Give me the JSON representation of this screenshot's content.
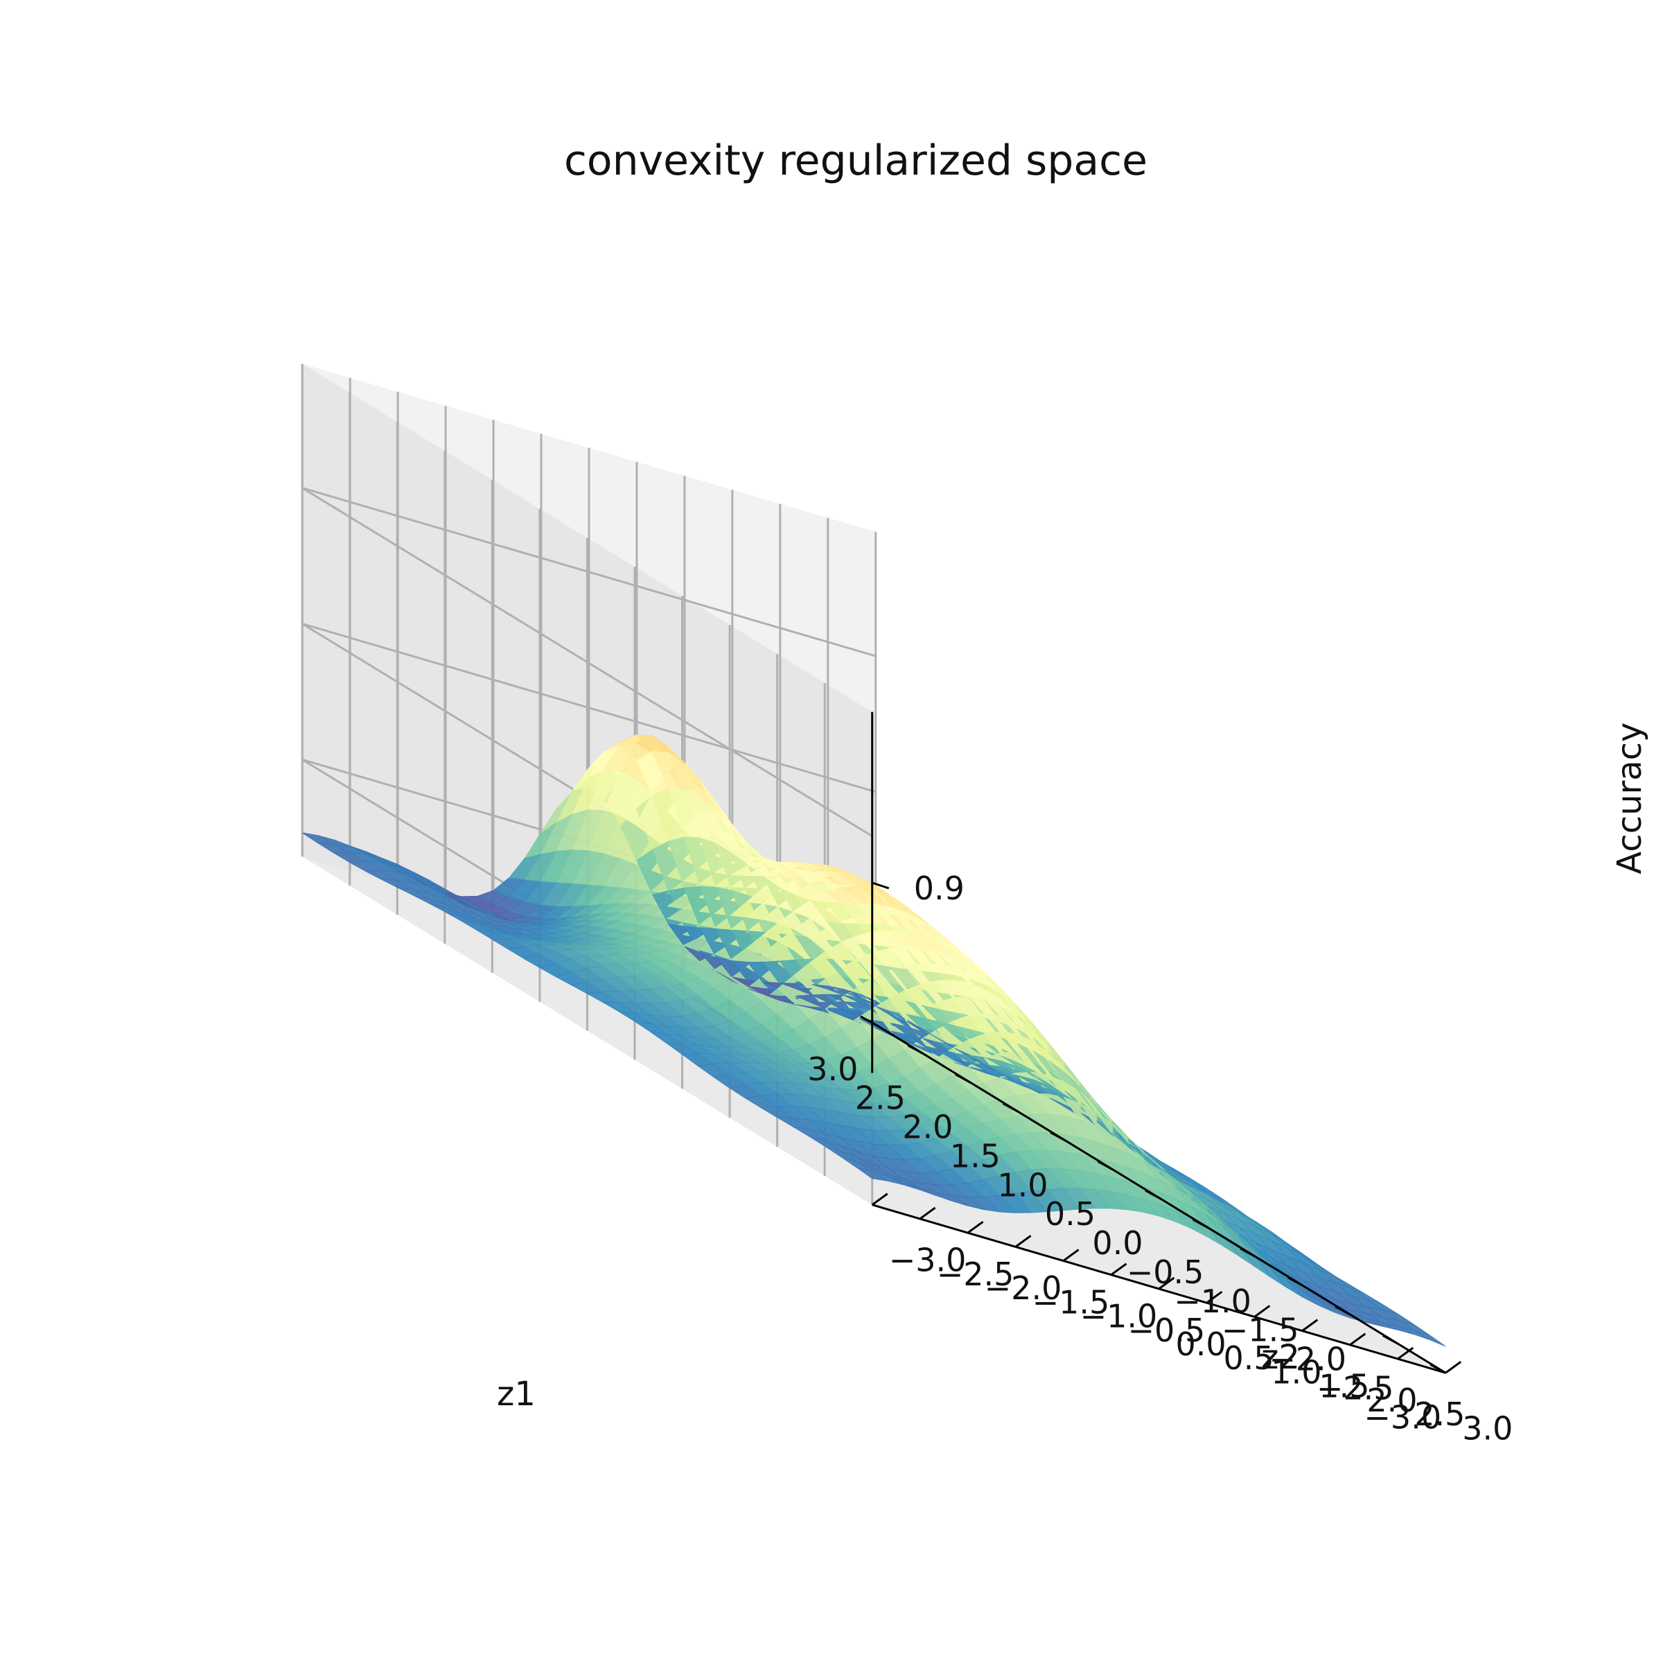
{
  "chart_data": {
    "type": "surface3d",
    "title": "convexity regularized space",
    "xlabel": "z1",
    "ylabel": "z2",
    "zlabel": "Accuracy",
    "xlim": [
      -3.0,
      3.0
    ],
    "ylim": [
      -3.0,
      3.0
    ],
    "x_ticks": [
      "3.0",
      "2.5",
      "2.0",
      "1.5",
      "1.0",
      "0.5",
      "0.0",
      "−0.5",
      "−1.0",
      "−1.5",
      "−2.0",
      "−2.5",
      "−3.0"
    ],
    "y_ticks": [
      "−3.0",
      "−2.5",
      "−2.0",
      "−1.5",
      "−1.0",
      "−0.5",
      "0.0",
      "0.5",
      "1.0",
      "1.5",
      "2.0",
      "2.5",
      "3.0"
    ],
    "z_ticks": [
      "0.9"
    ],
    "grid": true,
    "colormap": "Spectral",
    "colors": {
      "pane_back": "#f2f2f2",
      "pane_side": "#e6e6e6",
      "gridline": "#b0b0b0",
      "axis_line": "#000000"
    }
  }
}
